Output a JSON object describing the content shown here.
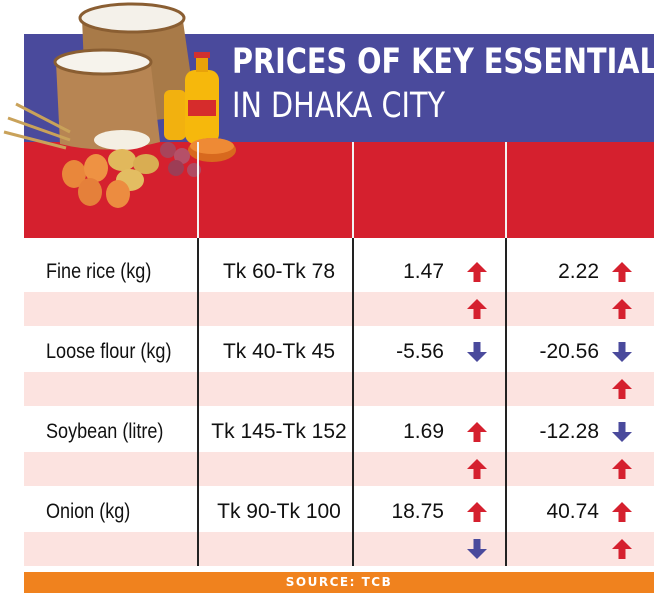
{
  "title_line1": "PRICES OF KEY ESSENTIALS",
  "title_line2": "IN DHAKA CITY",
  "source": "SOURCE: TCB",
  "colors": {
    "title_band": "#4a4a9c",
    "header_band": "#d5202e",
    "row_alt": "#fce3e0",
    "footer": "#f0821e",
    "up_arrow": "#d5202e",
    "down_arrow": "#4a4a9c"
  },
  "chart_data": {
    "type": "table",
    "rows": [
      {
        "name": "Fine rice (kg)",
        "price": "Tk 60-Tk 78",
        "change_1": "1.47",
        "dir_1": "up",
        "change_2": "2.22",
        "dir_2": "up",
        "sub_dir_1": "up",
        "sub_dir_2": "up"
      },
      {
        "name": "Loose flour (kg)",
        "price": "Tk 40-Tk 45",
        "change_1": "-5.56",
        "dir_1": "down",
        "change_2": "-20.56",
        "dir_2": "down",
        "sub_dir_1": "",
        "sub_dir_2": "up"
      },
      {
        "name": "Soybean (litre)",
        "price": "Tk 145-Tk 152",
        "change_1": "1.69",
        "dir_1": "up",
        "change_2": "-12.28",
        "dir_2": "down",
        "sub_dir_1": "up",
        "sub_dir_2": "up"
      },
      {
        "name": "Onion (kg)",
        "price": "Tk 90-Tk 100",
        "change_1": "18.75",
        "dir_1": "up",
        "change_2": "40.74",
        "dir_2": "up",
        "sub_dir_1": "down",
        "sub_dir_2": "up"
      }
    ]
  }
}
